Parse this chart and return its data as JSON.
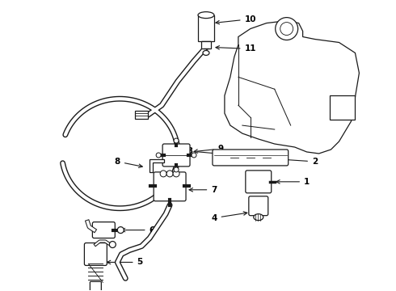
{
  "bg_color": "#ffffff",
  "line_color": "#1a1a1a",
  "label_color": "#000000",
  "fig_width": 4.9,
  "fig_height": 3.6,
  "dpi": 100,
  "lw": 0.9
}
